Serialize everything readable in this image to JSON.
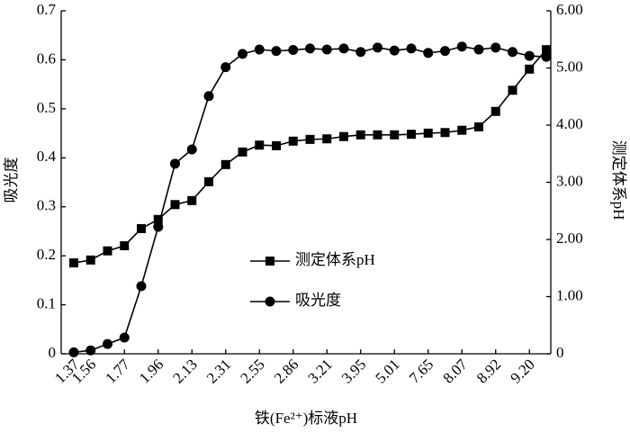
{
  "chart_data": {
    "type": "line",
    "x_label": "铁(Fe²⁺)标液pH",
    "y_label": "吸光度",
    "y2_label": "测定体系pH",
    "categories": [
      "1.37",
      "1.56",
      null,
      "1.77",
      null,
      "1.96",
      null,
      "2.13",
      null,
      "2.31",
      null,
      "2.55",
      null,
      "2.86",
      null,
      "3.21",
      null,
      "3.95",
      null,
      "5.01",
      null,
      "7.65",
      null,
      "8.07",
      null,
      "8.92",
      null,
      "9.20",
      null
    ],
    "series": [
      {
        "name": "测定体系pH",
        "color": "#000000",
        "marker": "square",
        "axis": "y2",
        "values": [
          1.59,
          1.64,
          1.8,
          1.89,
          2.19,
          2.35,
          2.61,
          2.68,
          3.01,
          3.31,
          3.53,
          3.65,
          3.64,
          3.72,
          3.75,
          3.76,
          3.8,
          3.83,
          3.83,
          3.83,
          3.84,
          3.86,
          3.87,
          3.91,
          3.97,
          4.24,
          4.61,
          4.98,
          5.32
        ]
      },
      {
        "name": "吸光度",
        "color": "#000000",
        "marker": "circle",
        "values": [
          0.003,
          0.007,
          0.02,
          0.033,
          0.138,
          0.259,
          0.388,
          0.417,
          0.526,
          0.585,
          0.612,
          0.621,
          0.618,
          0.62,
          0.623,
          0.621,
          0.623,
          0.616,
          0.625,
          0.619,
          0.623,
          0.614,
          0.618,
          0.627,
          0.621,
          0.625,
          0.616,
          0.608,
          0.606
        ]
      }
    ],
    "ylim": [
      0,
      0.7
    ],
    "yticks": [
      0,
      0.1,
      0.2,
      0.3,
      0.4,
      0.5,
      0.6,
      0.7
    ],
    "y2lim": [
      0,
      6
    ],
    "y2ticks": [
      0,
      {
        "value": 1,
        "label": "1.00"
      },
      {
        "value": 2,
        "label": "2.00"
      },
      {
        "value": 3,
        "label": "3.00"
      },
      {
        "value": 4,
        "label": "4.00"
      },
      {
        "value": 5,
        "label": "5.00"
      },
      {
        "value": 6,
        "label": "6.00"
      }
    ],
    "legend": "center"
  }
}
